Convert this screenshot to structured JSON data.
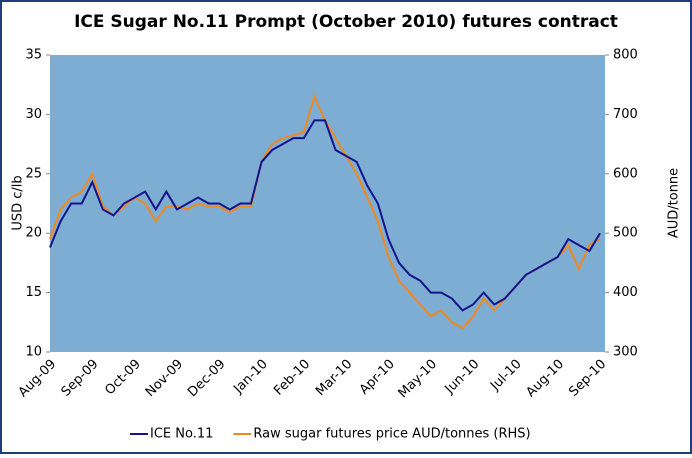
{
  "chart_data": {
    "type": "line",
    "title": "ICE Sugar No.11 Prompt (October 2010) futures contract",
    "ylabel": "USD c/lb",
    "y2label": "AUD/tonne",
    "categories": [
      "Aug-09",
      null,
      null,
      null,
      "Sep-09",
      null,
      null,
      null,
      "Oct-09",
      null,
      null,
      null,
      "Nov-09",
      null,
      null,
      null,
      "Dec-09",
      null,
      null,
      null,
      "Jan-10",
      null,
      null,
      null,
      "Feb-10",
      null,
      null,
      null,
      "Mar-10",
      null,
      null,
      null,
      "Apr-10",
      null,
      null,
      null,
      "May-10",
      null,
      null,
      null,
      "Jun-10",
      null,
      null,
      null,
      "Jul-10",
      null,
      null,
      null,
      "Aug-10",
      null,
      null,
      null,
      "Sep-10"
    ],
    "series": [
      {
        "name": "ICE No.11",
        "color": "#14148c",
        "values": [
          18.8,
          21,
          22.5,
          22.5,
          24.3,
          22,
          21.5,
          22.5,
          23,
          23.5,
          22,
          23.5,
          22,
          22.5,
          23,
          22.5,
          22.5,
          22,
          22.5,
          22.5,
          26,
          27,
          27.5,
          28,
          28,
          29.5,
          29.5,
          27,
          26.5,
          26,
          24,
          22.5,
          19.5,
          17.5,
          16.5,
          16,
          15,
          15,
          14.5,
          13.5,
          14,
          15,
          14,
          14.5,
          15.5,
          16.5,
          17,
          17.5,
          18,
          19.5,
          19,
          18.5,
          20
        ]
      },
      {
        "name": "Raw sugar futures price AUD/tonnes (RHS)",
        "color": "#f0891f",
        "axis": "y2",
        "values": [
          490,
          540,
          560,
          570,
          600,
          545,
          530,
          545,
          560,
          550,
          520,
          545,
          545,
          540,
          550,
          545,
          545,
          535,
          545,
          545,
          620,
          650,
          660,
          665,
          670,
          730,
          690,
          660,
          630,
          600,
          560,
          520,
          460,
          420,
          400,
          380,
          360,
          370,
          350,
          340,
          360,
          390,
          370,
          390,
          410,
          430,
          440,
          450,
          460,
          480,
          440,
          480,
          490
        ]
      }
    ],
    "ylim": [
      10,
      35
    ],
    "yticks": [
      10,
      15,
      20,
      25,
      30,
      35
    ],
    "y2lim": [
      300,
      800
    ],
    "y2ticks": [
      300,
      400,
      500,
      600,
      700,
      800
    ],
    "background": "#7dadd3"
  }
}
